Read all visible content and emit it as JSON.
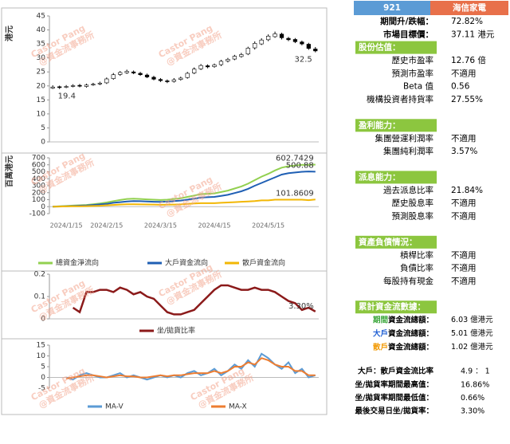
{
  "chart_data": [
    {
      "type": "candlestick",
      "y_label": "港元",
      "open": [
        19.2,
        19.7,
        19.5,
        19.9,
        20.2,
        19.8,
        20.4,
        20.7,
        21.1,
        22.6,
        24.1,
        24.7,
        25.0,
        24.5,
        23.9,
        23.1,
        22.3,
        21.8,
        21.6,
        22.3,
        23.0,
        24.6,
        26.1,
        27.2,
        26.9,
        27.6,
        28.9,
        29.6,
        30.5,
        31.4,
        33.6,
        35.0,
        36.5,
        37.6,
        38.5,
        37.0,
        36.6,
        35.7,
        34.9,
        33.2
      ],
      "high": [
        20.2,
        20.1,
        20.3,
        20.6,
        20.7,
        20.8,
        21.1,
        21.5,
        23.0,
        24.6,
        25.3,
        25.8,
        25.5,
        25.0,
        24.4,
        23.6,
        22.8,
        22.3,
        22.8,
        23.3,
        25.0,
        26.6,
        27.8,
        27.7,
        28.0,
        29.3,
        30.0,
        31.1,
        31.8,
        34.0,
        35.9,
        37.0,
        38.4,
        39.4,
        39.0,
        37.5,
        37.1,
        36.2,
        35.4,
        33.9
      ],
      "low": [
        18.9,
        18.9,
        19.2,
        19.5,
        19.5,
        19.4,
        20.0,
        20.3,
        20.7,
        22.2,
        23.6,
        24.3,
        24.2,
        23.6,
        22.8,
        22.0,
        21.4,
        21.0,
        21.2,
        21.9,
        22.6,
        24.2,
        25.7,
        26.3,
        26.5,
        27.1,
        28.4,
        29.2,
        30.1,
        31.0,
        33.0,
        34.6,
        36.0,
        37.2,
        36.6,
        36.0,
        35.3,
        34.5,
        32.9,
        32.0
      ],
      "close": [
        19.6,
        19.4,
        19.8,
        20.1,
        19.9,
        20.3,
        20.6,
        21.0,
        22.5,
        24.0,
        24.8,
        25.2,
        24.6,
        24.0,
        23.2,
        22.4,
        21.9,
        21.5,
        22.2,
        22.8,
        24.5,
        26.0,
        27.3,
        26.8,
        27.5,
        28.8,
        29.5,
        30.6,
        31.2,
        33.5,
        35.2,
        36.4,
        37.8,
        38.6,
        37.2,
        36.5,
        35.8,
        35.0,
        33.4,
        32.5
      ],
      "color_up": "#ffffff",
      "color_down": "#000000",
      "ylim": [
        0,
        45
      ],
      "yticks": [
        0,
        5,
        10,
        15,
        20,
        25,
        30,
        35,
        40,
        45
      ]
    },
    {
      "type": "line",
      "y_label": "百萬港元",
      "categories": [
        null,
        null,
        "2024/1/15",
        null,
        null,
        null,
        null,
        null,
        "2024/2/15",
        null,
        null,
        null,
        null,
        null,
        null,
        null,
        "2024/3/15",
        null,
        null,
        null,
        null,
        null,
        null,
        null,
        "2024/4/15",
        null,
        null,
        null,
        null,
        null,
        null,
        null,
        "2024/5/15",
        null,
        null,
        null,
        null,
        null,
        null,
        null
      ],
      "series": [
        {
          "name": "總資金淨流向",
          "color": "#92d050",
          "values": [
            0,
            5,
            10,
            15,
            20,
            25,
            35,
            45,
            60,
            80,
            95,
            110,
            115,
            110,
            105,
            100,
            95,
            100,
            110,
            120,
            140,
            160,
            180,
            185,
            190,
            210,
            230,
            260,
            290,
            330,
            380,
            430,
            470,
            520,
            560,
            580,
            590,
            600,
            598,
            602.7429
          ]
        },
        {
          "name": "大戶資金流向",
          "color": "#1f5fb4",
          "values": [
            0,
            3,
            6,
            10,
            14,
            18,
            25,
            32,
            40,
            55,
            65,
            75,
            80,
            78,
            74,
            70,
            68,
            72,
            80,
            88,
            100,
            115,
            130,
            135,
            140,
            155,
            170,
            195,
            220,
            255,
            300,
            340,
            380,
            420,
            460,
            480,
            490,
            500,
            505,
            500.88
          ]
        },
        {
          "name": "散戶資金流向",
          "color": "#f2b705",
          "values": [
            0,
            2,
            4,
            5,
            6,
            7,
            10,
            13,
            20,
            25,
            30,
            35,
            35,
            32,
            31,
            30,
            27,
            28,
            30,
            32,
            40,
            45,
            50,
            50,
            50,
            55,
            60,
            65,
            70,
            75,
            80,
            90,
            90,
            100,
            100,
            100,
            100,
            100,
            93,
            101.8609
          ]
        }
      ],
      "end_labels": true,
      "ylim": [
        -100,
        700
      ],
      "yticks": [
        -100,
        0,
        100,
        200,
        300,
        400,
        500,
        600,
        700
      ]
    },
    {
      "type": "line",
      "series": [
        {
          "name": "坐/拋貨比率",
          "color": "#8b1a1a",
          "values": [
            null,
            null,
            null,
            0.05,
            0.03,
            0.12,
            0.12,
            0.13,
            0.13,
            0.12,
            0.14,
            0.13,
            0.11,
            0.12,
            0.1,
            0.09,
            0.06,
            0.03,
            0.02,
            0.02,
            0.03,
            0.04,
            0.07,
            0.1,
            0.13,
            0.15,
            0.15,
            0.14,
            0.13,
            0.13,
            0.14,
            0.13,
            0.13,
            0.12,
            0.1,
            0.08,
            0.07,
            0.04,
            0.05,
            0.033
          ],
          "value_labels": [
            null,
            null,
            null,
            null,
            null,
            null,
            null,
            null,
            null,
            null,
            null,
            null,
            null,
            null,
            null,
            null,
            null,
            null,
            null,
            null,
            null,
            null,
            null,
            null,
            null,
            null,
            null,
            null,
            null,
            null,
            null,
            null,
            null,
            null,
            null,
            null,
            null,
            null,
            null,
            "3.30%"
          ]
        }
      ],
      "ylim": [
        0,
        0.2
      ],
      "yticks": [
        0,
        0.1,
        0.2
      ]
    },
    {
      "type": "line",
      "series": [
        {
          "name": "MA-V",
          "color": "#5b9bd5",
          "values": [
            null,
            null,
            0,
            -1,
            1,
            2,
            1,
            0,
            0,
            1,
            2,
            0,
            1,
            0,
            -1,
            0,
            1,
            0,
            1,
            0,
            2,
            3,
            1,
            2,
            4,
            1,
            3,
            6,
            4,
            8,
            5,
            11,
            9,
            6,
            4,
            7,
            2,
            4,
            0,
            1
          ]
        },
        {
          "name": "MA-X",
          "color": "#ed7d31",
          "values": [
            null,
            null,
            -0.5,
            0,
            0.5,
            1,
            1,
            0.5,
            0,
            0.5,
            1,
            0.5,
            0.5,
            0,
            0,
            0.5,
            1,
            0.5,
            1,
            1,
            1.5,
            2,
            2,
            2,
            3,
            2,
            3,
            5,
            5,
            7,
            6,
            9,
            8,
            6,
            5,
            5,
            3,
            3,
            1,
            1
          ]
        }
      ],
      "ylim": [
        -5,
        15
      ],
      "yticks": [
        -5,
        0,
        5,
        10,
        15
      ]
    }
  ],
  "watermark": {
    "lines": [
      "Castor Pang",
      "@資金流事務所"
    ],
    "color": "#f2a48c"
  },
  "stock_panel": {
    "code": "921",
    "code_color": "#5b9bd5",
    "name": "海信家電",
    "name_color": "#e8704a",
    "summary": [
      {
        "label": "期間升/跌幅：",
        "value": "72.82%"
      },
      {
        "label": "市場目標價：",
        "value": "37.11 港元"
      }
    ],
    "section_color": "#8cc63f",
    "sections": [
      {
        "title": "股份估值：",
        "rows": [
          {
            "label": "歷史市盈率",
            "value": "12.76 倍"
          },
          {
            "label": "預測市盈率",
            "value": "不適用"
          },
          {
            "label": "Beta 值",
            "value": "0.56"
          },
          {
            "label": "機構投資者持貨率",
            "value": "27.55%"
          }
        ]
      },
      {
        "title": "盈利能力：",
        "rows": [
          {
            "label": "集團營運利潤率",
            "value": "不適用"
          },
          {
            "label": "集團純利潤率",
            "value": "3.57%"
          }
        ]
      },
      {
        "title": "派息能力：",
        "rows": [
          {
            "label": "過去派息比率",
            "value": "21.84%"
          },
          {
            "label": "歷史股息率",
            "value": "不適用"
          },
          {
            "label": "預測股息率",
            "value": "不適用"
          }
        ]
      },
      {
        "title": "資產負債情況：",
        "rows": [
          {
            "label": "槓桿比率",
            "value": "不適用"
          },
          {
            "label": "負債比率",
            "value": "不適用"
          },
          {
            "label": "每股持有現金",
            "value": "不適用"
          }
        ]
      },
      {
        "title": "累計資金流數據：",
        "rows": [
          {
            "highlight": "期間",
            "color": "#3aa63a",
            "label": "資金流總額：",
            "value": "6.03 億港元"
          },
          {
            "highlight": "大戶",
            "color": "#1f5fd4",
            "label": "資金流總額：",
            "value": "5.01 億港元"
          },
          {
            "highlight": "散戶",
            "color": "#f29a05",
            "label": "資金流總額：",
            "value": "1.02 億港元"
          }
        ]
      }
    ],
    "ratios": [
      {
        "label": "大戶：散戶資金流比率",
        "value": "4.9 ： 1"
      },
      {
        "label": "坐/拋貨率期間最高值：",
        "value": "16.86%"
      },
      {
        "label": "坐/拋貨率期間最低值：",
        "value": "0.66%"
      },
      {
        "label": "最後交易日坐/拋貨率：",
        "value": "3.30%"
      }
    ]
  }
}
